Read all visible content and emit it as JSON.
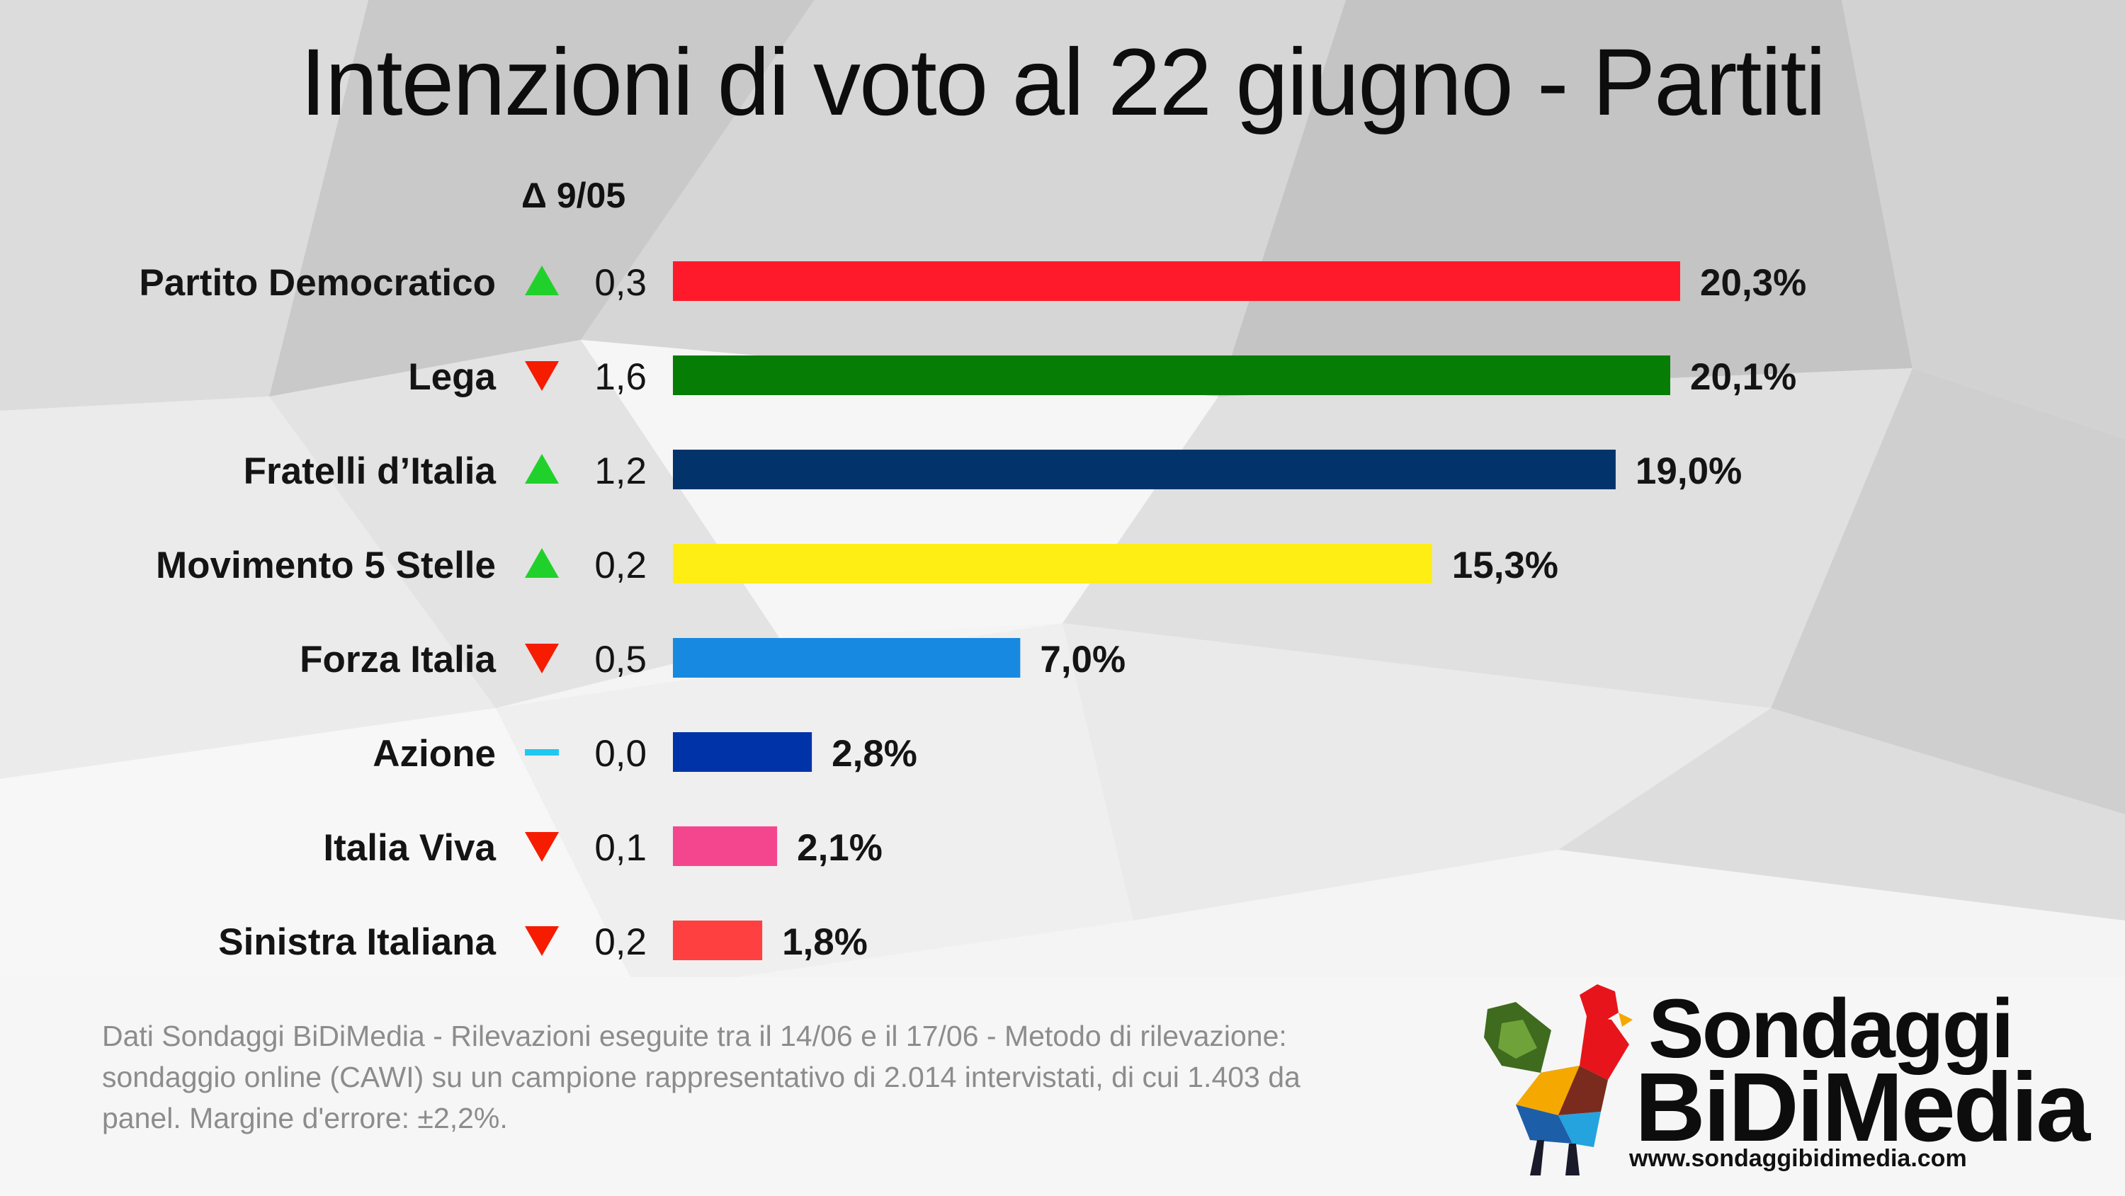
{
  "title": "Intenzioni di voto al 22 giugno - Partiti",
  "delta_header": "Δ 9/05",
  "chart_data": {
    "type": "bar",
    "orientation": "horizontal",
    "title": "Intenzioni di voto al 22 giugno - Partiti",
    "categories": [
      "Partito Democratico",
      "Lega",
      "Fratelli d’Italia",
      "Movimento 5 Stelle",
      "Forza Italia",
      "Azione",
      "Italia Viva",
      "Sinistra Italiana"
    ],
    "values": [
      20.3,
      20.1,
      19.0,
      15.3,
      7.0,
      2.8,
      2.1,
      1.8
    ],
    "value_labels": [
      "20,3%",
      "20,1%",
      "19,0%",
      "15,3%",
      "7,0%",
      "2,8%",
      "2,1%",
      "1,8%"
    ],
    "colors": [
      "#ff1a2b",
      "#067d05",
      "#02346b",
      "#ffee14",
      "#1789e0",
      "#0033a8",
      "#f4468f",
      "#ff4040"
    ],
    "delta_values": [
      "0,3",
      "1,6",
      "1,2",
      "0,2",
      "0,5",
      "0,0",
      "0,1",
      "0,2"
    ],
    "delta_direction": [
      "up",
      "down",
      "up",
      "up",
      "down",
      "flat",
      "down",
      "down"
    ],
    "delta_colors": {
      "up": "#21d12b",
      "down": "#f51c00",
      "flat": "#1fc8f0"
    },
    "xlim": [
      0,
      20.3
    ],
    "grid": false,
    "legend": "none"
  },
  "footnote": "Dati Sondaggi BiDiMedia - Rilevazioni eseguite tra il 14/06 e il 17/06 - Metodo di rilevazione: sondaggio online (CAWI) su un campione rappresentativo di 2.014 intervistati, di cui 1.403 da panel. Margine d'errore: ±2,2%.",
  "logo": {
    "line1": "Sondaggi",
    "line2": "BiDiMedia",
    "url": "www.sondaggibidimedia.com",
    "icon": "rooster-icon"
  }
}
